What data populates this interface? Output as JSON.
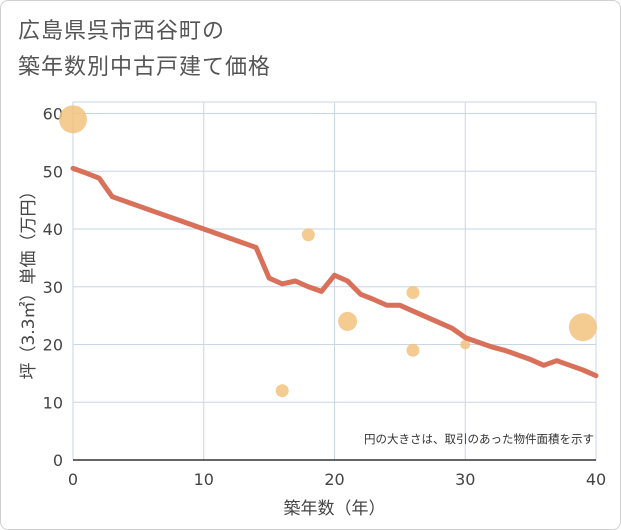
{
  "title_line1": "広島県呉市西谷町の",
  "title_line2": "築年数別中古戸建て価格",
  "chart_data": {
    "type": "scatter",
    "title": "広島県呉市西谷町の築年数別中古戸建て価格",
    "xlabel": "築年数（年）",
    "ylabel": "坪（3.3㎡）単価（万円）",
    "xlim": [
      0,
      40
    ],
    "ylim": [
      0,
      62
    ],
    "xticks": [
      0,
      10,
      20,
      30,
      40
    ],
    "yticks": [
      0,
      10,
      20,
      30,
      40,
      50,
      60
    ],
    "grid": true,
    "note": "円の大きさは、取引のあった物件面積を示す",
    "colors": {
      "points": "#f2c27e",
      "line": "#d9705a",
      "grid": "#c9d6e3"
    },
    "points": [
      {
        "x": 0,
        "y": 59,
        "size": 3
      },
      {
        "x": 16,
        "y": 12,
        "size": 1
      },
      {
        "x": 18,
        "y": 39,
        "size": 1
      },
      {
        "x": 21,
        "y": 24,
        "size": 2
      },
      {
        "x": 26,
        "y": 29,
        "size": 1
      },
      {
        "x": 26,
        "y": 19,
        "size": 1
      },
      {
        "x": 30,
        "y": 20,
        "size": 0
      },
      {
        "x": 39,
        "y": 23,
        "size": 3
      }
    ],
    "trend": {
      "x": [
        0,
        1,
        2,
        3,
        4,
        5,
        6,
        7,
        8,
        9,
        10,
        11,
        12,
        13,
        14,
        15,
        16,
        17,
        18,
        19,
        20,
        21,
        22,
        23,
        24,
        25,
        26,
        27,
        28,
        29,
        30,
        31,
        32,
        33,
        34,
        35,
        36,
        37,
        38,
        39,
        40
      ],
      "y": [
        50.5,
        49.7,
        48.8,
        45.6,
        44.8,
        44.0,
        43.2,
        42.4,
        41.6,
        40.8,
        40.0,
        39.2,
        38.4,
        37.6,
        36.8,
        31.5,
        30.5,
        31.0,
        30.0,
        29.2,
        32.0,
        31.0,
        28.7,
        27.8,
        26.8,
        26.8,
        25.8,
        24.8,
        23.8,
        22.8,
        21.2,
        20.4,
        19.6,
        19.0,
        18.2,
        17.4,
        16.4,
        17.2,
        16.4,
        15.6,
        14.6
      ]
    }
  }
}
